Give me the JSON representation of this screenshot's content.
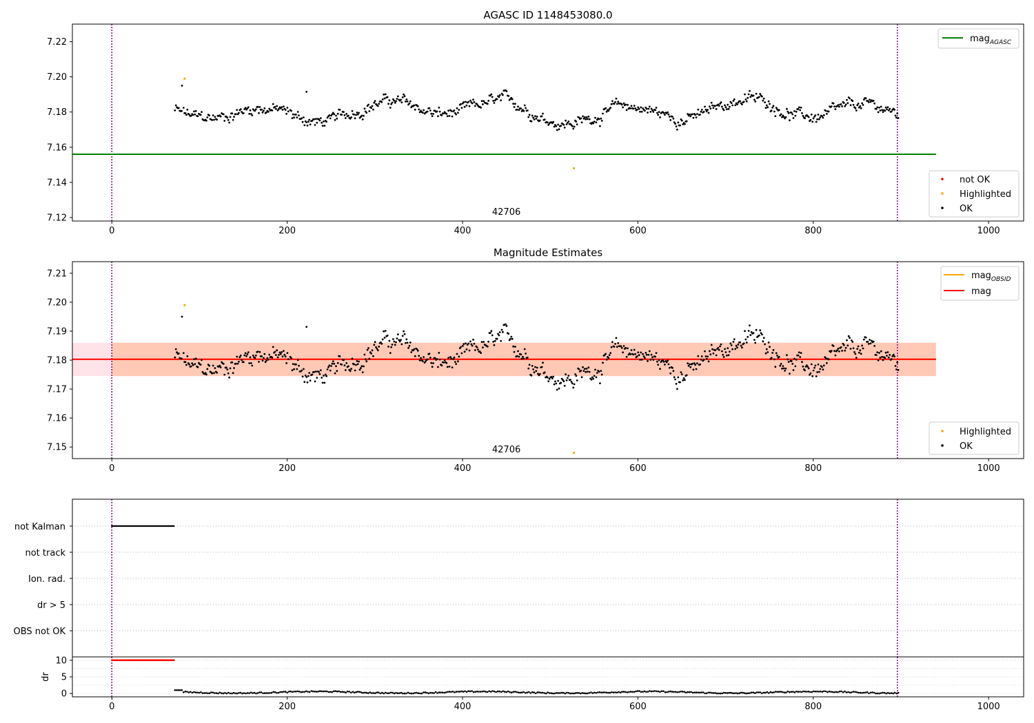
{
  "figure": {
    "top_title": "AGASC ID 1148453080.0",
    "mid_title": "Magnitude Estimates",
    "obsid_label": "42706",
    "dr_ylabel": "dr"
  },
  "colors": {
    "ok": "#000000",
    "highlighted": "#ffa500",
    "not_ok": "#ff0000",
    "mag_agasc_line": "#008000",
    "mag_line": "#ff0000",
    "mag_obsid_line": "#ffa500",
    "band_outer": "#ffc0cb",
    "band_inner": "#ffb48c",
    "vline": "#800080"
  },
  "chart_data": [
    {
      "type": "scatter",
      "title": "AGASC ID 1148453080.0",
      "xlim": [
        -45,
        1040
      ],
      "ylim": [
        7.118,
        7.23
      ],
      "xticks": [
        0,
        200,
        400,
        600,
        800,
        1000
      ],
      "yticks": [
        7.12,
        7.14,
        7.16,
        7.18,
        7.2,
        7.22
      ],
      "vlines": [
        0,
        896
      ],
      "hlines": [
        {
          "name": "mag_AGASC",
          "y": 7.156,
          "x": [
            -45,
            940
          ]
        }
      ],
      "series": [
        {
          "name": "not OK",
          "points": []
        },
        {
          "name": "Highlighted",
          "points": [
            [
              83,
              7.199
            ],
            [
              527,
              7.148
            ]
          ]
        },
        {
          "name": "OK",
          "generated": "x 72–897, y ≈ 7.166–7.196, centred ~7.180"
        }
      ],
      "legend_upper": {
        "position": "top-right",
        "entries": [
          "mag_AGASC"
        ]
      },
      "legend_lower": {
        "position": "lower-right",
        "entries": [
          "not OK",
          "Highlighted",
          "OK"
        ]
      },
      "annotation": "42706"
    },
    {
      "type": "scatter",
      "title": "Magnitude Estimates",
      "xlim": [
        -45,
        1040
      ],
      "ylim": [
        7.146,
        7.214
      ],
      "xticks": [
        0,
        200,
        400,
        600,
        800,
        1000
      ],
      "yticks": [
        7.15,
        7.16,
        7.17,
        7.18,
        7.19,
        7.2,
        7.21
      ],
      "vlines": [
        0,
        896
      ],
      "bands": [
        {
          "y": [
            7.1745,
            7.186
          ],
          "x": [
            -45,
            940
          ],
          "kind": "outer"
        },
        {
          "y": [
            7.1745,
            7.186
          ],
          "x": [
            0,
            940
          ],
          "kind": "inner"
        }
      ],
      "hlines": [
        {
          "name": "mag_OBSID",
          "y": 7.1803,
          "x": [
            0,
            940
          ]
        },
        {
          "name": "mag",
          "y": 7.1803,
          "x": [
            -45,
            940
          ]
        }
      ],
      "series": [
        {
          "name": "Highlighted",
          "points": [
            [
              83,
              7.199
            ],
            [
              527,
              7.148
            ]
          ]
        },
        {
          "name": "OK",
          "generated": "same samples as top panel"
        }
      ],
      "legend_upper": {
        "position": "top-right",
        "entries": [
          "mag_OBSID",
          "mag"
        ]
      },
      "legend_lower": {
        "position": "lower-right",
        "entries": [
          "Highlighted",
          "OK"
        ]
      },
      "annotation": "42706"
    },
    {
      "type": "scatter",
      "title": "",
      "xlim": [
        -45,
        1040
      ],
      "categories": [
        "not Kalman",
        "not track",
        "Ion. rad.",
        "dr > 5",
        "OBS not OK"
      ],
      "flags": [
        {
          "category": "not Kalman",
          "x_range": [
            0,
            71
          ]
        }
      ],
      "vlines": [
        0,
        896
      ]
    },
    {
      "type": "scatter",
      "title": "",
      "xlim": [
        -45,
        1040
      ],
      "ylim": [
        -1,
        11
      ],
      "yticks": [
        0,
        5,
        10
      ],
      "xticks": [
        0,
        200,
        400,
        600,
        800,
        1000
      ],
      "ylabel": "dr",
      "vlines": [
        0,
        896
      ],
      "series": [
        {
          "name": "not OK",
          "x_range": [
            0,
            71
          ],
          "y": 10
        },
        {
          "name": "OK",
          "generated": "x 72–897, y ≈ 0–1.2"
        }
      ]
    }
  ]
}
